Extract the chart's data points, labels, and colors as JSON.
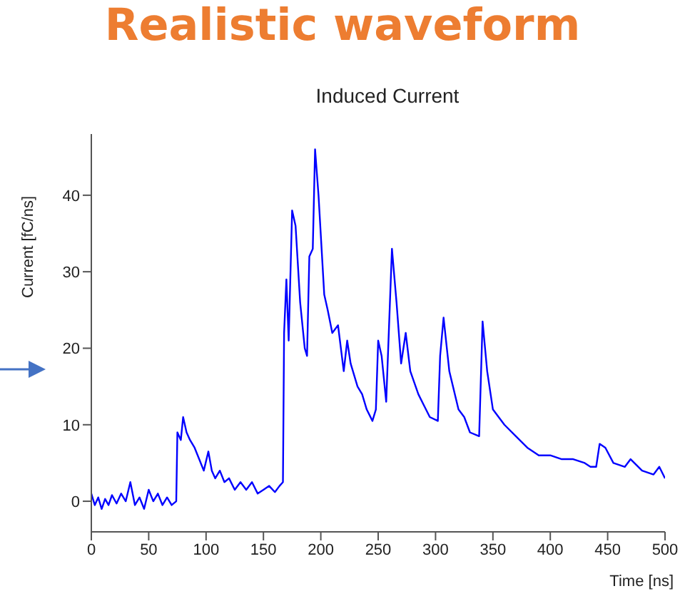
{
  "chart_data": {
    "type": "line",
    "title": "Realistic waveform",
    "subtitle": "Induced Current",
    "xlabel": "Time [ns]",
    "ylabel": "Current [fC/ns]",
    "x": [
      0,
      3,
      6,
      9,
      12,
      15,
      18,
      22,
      26,
      30,
      34,
      38,
      42,
      46,
      50,
      54,
      58,
      62,
      66,
      70,
      74,
      75,
      78,
      80,
      83,
      86,
      90,
      94,
      98,
      102,
      105,
      108,
      112,
      116,
      120,
      125,
      130,
      135,
      140,
      145,
      150,
      155,
      160,
      164,
      167,
      168,
      170,
      172,
      175,
      178,
      182,
      186,
      188,
      190,
      193,
      195,
      198,
      203,
      206,
      210,
      215,
      220,
      223,
      226,
      232,
      236,
      240,
      245,
      248,
      250,
      253,
      257,
      262,
      266,
      270,
      274,
      278,
      285,
      290,
      295,
      302,
      304,
      307,
      312,
      320,
      325,
      330,
      338,
      341,
      345,
      350,
      360,
      370,
      380,
      390,
      400,
      410,
      420,
      430,
      435,
      440,
      443,
      448,
      455,
      465,
      470,
      480,
      490,
      495,
      500
    ],
    "series": [
      {
        "color": "#0000ff",
        "values": [
          1,
          -0.5,
          0.5,
          -1,
          0.3,
          -0.5,
          0.8,
          -0.3,
          1,
          0,
          2.5,
          -0.5,
          0.5,
          -1,
          1.5,
          0,
          1,
          -0.5,
          0.5,
          -0.5,
          0,
          9,
          8,
          11,
          9,
          8,
          7,
          5.5,
          4,
          6.5,
          4,
          3,
          4,
          2.5,
          3,
          1.5,
          2.5,
          1.5,
          2.5,
          1,
          1.5,
          2,
          1.2,
          2,
          2.5,
          22,
          29,
          21,
          38,
          36,
          26,
          20,
          19,
          32,
          33,
          46,
          40,
          27,
          25,
          22,
          23,
          17,
          21,
          18,
          15,
          14,
          12,
          10.5,
          12,
          21,
          19,
          13,
          33,
          26,
          18,
          22,
          17,
          14,
          12.5,
          11,
          10.5,
          19,
          24,
          17,
          12,
          11,
          9,
          8.5,
          23.5,
          17,
          12,
          10,
          8.5,
          7,
          6,
          6,
          5.5,
          5.5,
          5,
          4.5,
          4.5,
          7.5,
          7,
          5,
          4.5,
          5.5,
          4,
          3.5,
          4.5,
          3
        ]
      }
    ],
    "xlim": [
      0,
      500
    ],
    "ylim": [
      -4,
      48
    ],
    "xticks": [
      0,
      50,
      100,
      150,
      200,
      250,
      300,
      350,
      400,
      450,
      500
    ],
    "yticks": [
      0,
      10,
      20,
      30,
      40
    ]
  }
}
